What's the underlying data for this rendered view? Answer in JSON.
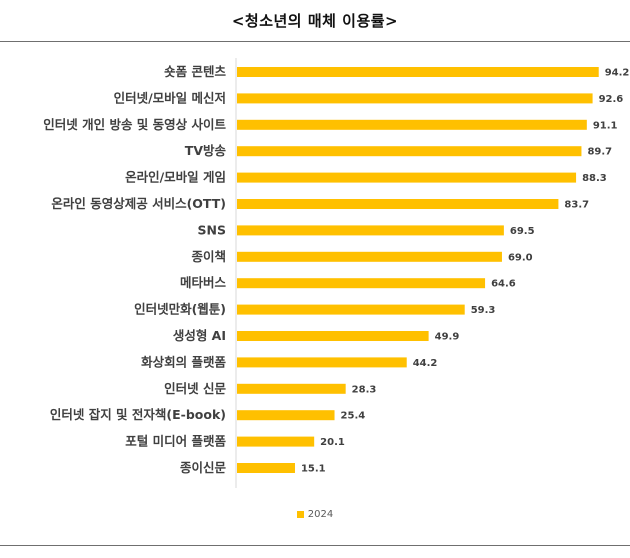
{
  "chart_data": {
    "type": "bar",
    "orientation": "horizontal",
    "title": "<청소년의 매체 이용률>",
    "categories": [
      "숏폼 콘텐츠",
      "인터넷/모바일 메신저",
      "인터넷 개인 방송 및 동영상 사이트",
      "TV방송",
      "온라인/모바일 게임",
      "온라인 동영상제공 서비스(OTT)",
      "SNS",
      "종이책",
      "메타버스",
      "인터넷만화(웹툰)",
      "생성형 AI",
      "화상회의 플랫폼",
      "인터넷 신문",
      "인터넷 잡지 및 전자책(E-book)",
      "포털 미디어 플랫폼",
      "종이신문"
    ],
    "series": [
      {
        "name": "2024",
        "values": [
          94.2,
          92.6,
          91.1,
          89.7,
          88.3,
          83.7,
          69.5,
          69.0,
          64.6,
          59.3,
          49.9,
          44.2,
          28.3,
          25.4,
          20.1,
          15.1
        ],
        "labels": [
          "94.2",
          "92.6",
          "91.1",
          "89.7",
          "88.3",
          "83.7",
          "69.5",
          "69.0",
          "64.6",
          "59.3",
          "49.9",
          "44.2",
          "28.3",
          "25.4",
          "20.1",
          "15.1"
        ]
      }
    ],
    "xlim": [
      0,
      100
    ],
    "grid": false,
    "legend_position": "bottom",
    "colors": {
      "bar": "#ffc000",
      "axis": "#d9d9d9",
      "text": "#404040"
    }
  }
}
